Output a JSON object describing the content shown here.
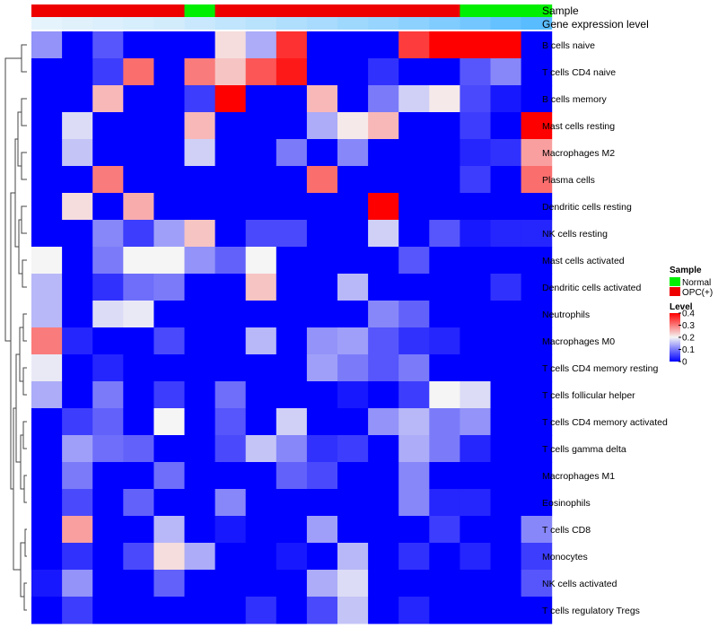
{
  "chart_data": {
    "type": "heatmap",
    "title": "",
    "rows": [
      "B cells naive",
      "T cells CD4 naive",
      "B cells memory",
      "Mast cells resting",
      "Macrophages M2",
      "Plasma cells",
      "Dendritic cells resting",
      "NK cells resting",
      "Mast cells activated",
      "Dendritic cells activated",
      "Neutrophils",
      "Macrophages M0",
      "T cells CD4 memory resting",
      "T cells follicular helper",
      "T cells CD4 memory activated",
      "T cells gamma delta",
      "Macrophages M1",
      "Eosinophils",
      "T cells CD8",
      "Monocytes",
      "NK cells activated",
      "T cells regulatory  Tregs"
    ],
    "column_annotations": {
      "sample_label": "Sample",
      "gene_expression_label": "Gene expression level",
      "sample": [
        "OPC(+)",
        "OPC(+)",
        "OPC(+)",
        "OPC(+)",
        "OPC(+)",
        "Normal",
        "OPC(+)",
        "OPC(+)",
        "OPC(+)",
        "OPC(+)",
        "OPC(+)",
        "OPC(+)",
        "OPC(+)",
        "OPC(+)",
        "Normal",
        "Normal",
        "Normal"
      ],
      "gene_expression": [
        0.02,
        0.05,
        0.08,
        0.11,
        0.14,
        0.2,
        0.26,
        0.31,
        0.37,
        0.42,
        0.48,
        0.53,
        0.6,
        0.68,
        0.76,
        0.86,
        0.95
      ]
    },
    "values": [
      [
        0.12,
        0,
        0.07,
        0,
        0,
        0,
        0.22,
        0.14,
        0.36,
        0,
        0,
        0,
        0.35,
        0.4,
        0.4,
        0.4,
        0
      ],
      [
        0,
        0,
        0.05,
        0.31,
        0,
        0.3,
        0.24,
        0.33,
        0.38,
        0,
        0,
        0.04,
        0,
        0,
        0.07,
        0.11,
        0
      ],
      [
        0,
        0,
        0.25,
        0,
        0,
        0.05,
        0.4,
        0,
        0,
        0.25,
        0,
        0.1,
        0.17,
        0.21,
        0.06,
        0.02,
        0
      ],
      [
        0,
        0.18,
        0,
        0,
        0,
        0.25,
        0,
        0,
        0,
        0.14,
        0.21,
        0.25,
        0,
        0,
        0.05,
        0,
        0.4
      ],
      [
        0,
        0.16,
        0,
        0,
        0,
        0.17,
        0,
        0,
        0.1,
        0,
        0.11,
        0,
        0,
        0,
        0.03,
        0.04,
        0.27
      ],
      [
        0,
        0,
        0.3,
        0,
        0,
        0,
        0,
        0,
        0,
        0.31,
        0,
        0,
        0,
        0,
        0.05,
        0,
        0.31
      ],
      [
        0,
        0.22,
        0,
        0.26,
        0,
        0,
        0,
        0,
        0,
        0,
        0,
        0.4,
        0,
        0,
        0,
        0,
        0
      ],
      [
        0,
        0,
        0.11,
        0.05,
        0.13,
        0.24,
        0,
        0.06,
        0.06,
        0,
        0,
        0.17,
        0,
        0.07,
        0.02,
        0.03,
        0.03
      ],
      [
        0.2,
        0,
        0.1,
        0.2,
        0.2,
        0.12,
        0.08,
        0.2,
        0,
        0,
        0,
        0,
        0.07,
        0,
        0,
        0,
        0
      ],
      [
        0.15,
        0,
        0.04,
        0.09,
        0.1,
        0,
        0,
        0.24,
        0,
        0,
        0.15,
        0,
        0,
        0,
        0,
        0.04,
        0
      ],
      [
        0.15,
        0,
        0.18,
        0.19,
        0,
        0,
        0,
        0,
        0,
        0,
        0,
        0.11,
        0.08,
        0,
        0,
        0,
        0
      ],
      [
        0.3,
        0.03,
        0,
        0,
        0.06,
        0,
        0,
        0.15,
        0,
        0.12,
        0.13,
        0.07,
        0.04,
        0.03,
        0,
        0,
        0
      ],
      [
        0.19,
        0,
        0.03,
        0,
        0,
        0,
        0,
        0,
        0,
        0.13,
        0.1,
        0.07,
        0.1,
        0,
        0,
        0,
        0
      ],
      [
        0.14,
        0,
        0.1,
        0,
        0.05,
        0,
        0.09,
        0,
        0,
        0,
        0.02,
        0,
        0.05,
        0.2,
        0.18,
        0,
        0
      ],
      [
        0,
        0.05,
        0.08,
        0,
        0.2,
        0,
        0.07,
        0,
        0.17,
        0,
        0,
        0.12,
        0.15,
        0.1,
        0.12,
        0,
        0
      ],
      [
        0,
        0.13,
        0.09,
        0.08,
        0,
        0,
        0.06,
        0.16,
        0.11,
        0.04,
        0.05,
        0,
        0.14,
        0.1,
        0.03,
        0,
        0
      ],
      [
        0,
        0.1,
        0,
        0,
        0.09,
        0,
        0,
        0,
        0.08,
        0.06,
        0,
        0,
        0.11,
        0,
        0,
        0,
        0
      ],
      [
        0,
        0.06,
        0,
        0.08,
        0,
        0,
        0.11,
        0,
        0,
        0,
        0,
        0,
        0.11,
        0.03,
        0.03,
        0,
        0
      ],
      [
        0,
        0.27,
        0,
        0,
        0.15,
        0,
        0.02,
        0,
        0,
        0.13,
        0,
        0,
        0,
        0.05,
        0,
        0,
        0.11
      ],
      [
        0,
        0.04,
        0,
        0.06,
        0.22,
        0.14,
        0,
        0,
        0.02,
        0,
        0.15,
        0,
        0.04,
        0,
        0.03,
        0,
        0.05
      ],
      [
        0.02,
        0.12,
        0,
        0,
        0.08,
        0,
        0,
        0,
        0,
        0.14,
        0.18,
        0,
        0,
        0,
        0,
        0,
        0.07
      ],
      [
        0,
        0.05,
        0,
        0,
        0,
        0,
        0,
        0.04,
        0,
        0.06,
        0.16,
        0,
        0.03,
        0,
        0,
        0,
        0
      ]
    ],
    "legend": {
      "sample_title": "Sample",
      "sample_entries": [
        {
          "label": "Normal",
          "color": "#00ee00"
        },
        {
          "label": "OPC(+)",
          "color": "#ee0000"
        }
      ],
      "level_title": "Level",
      "level_ticks": [
        "0.4",
        "0.3",
        "0.2",
        "0.1",
        "0"
      ],
      "level_min": 0,
      "level_max": 0.4
    },
    "colors": {
      "low": "#0000ff",
      "mid": "#f5f5f5",
      "high": "#ff0000"
    },
    "row_dendrogram": true
  }
}
